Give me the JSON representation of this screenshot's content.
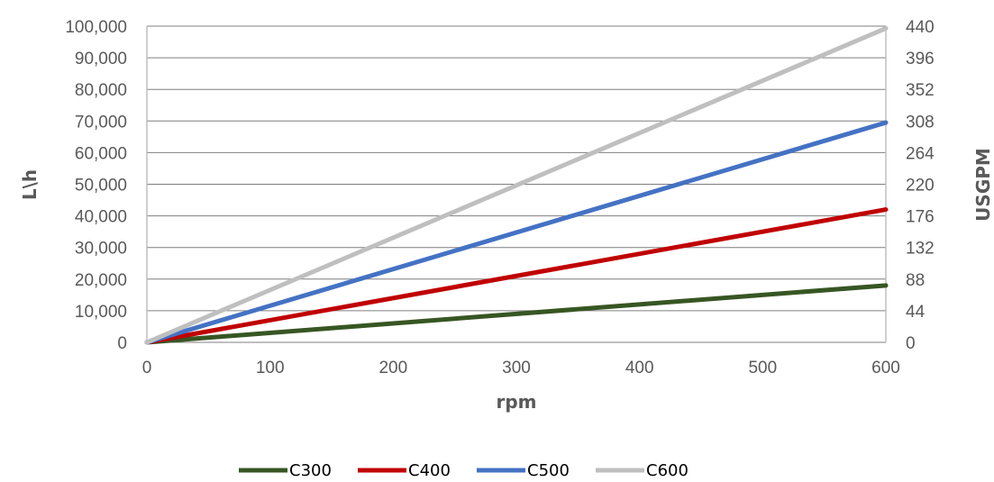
{
  "chart_data": {
    "type": "line",
    "title": "",
    "xlabel": "rpm",
    "ylabel": "L\\h",
    "y2label": "USGPM",
    "xlim": [
      0,
      600
    ],
    "ylim": [
      0,
      100000
    ],
    "y2lim": [
      0,
      440
    ],
    "x_ticks": [
      "0",
      "100",
      "200",
      "300",
      "400",
      "500",
      "600"
    ],
    "y_ticks": [
      "0",
      "10,000",
      "20,000",
      "30,000",
      "40,000",
      "50,000",
      "60,000",
      "70,000",
      "80,000",
      "90,000",
      "100,000"
    ],
    "y2_ticks": [
      "0",
      "44",
      "88",
      "132",
      "176",
      "220",
      "264",
      "308",
      "352",
      "396",
      "440"
    ],
    "grid": true,
    "legend_position": "bottom",
    "series": [
      {
        "name": "C300",
        "color": "#375623",
        "x": [
          0,
          600
        ],
        "y": [
          0,
          18000
        ]
      },
      {
        "name": "C400",
        "color": "#C00000",
        "x": [
          0,
          600
        ],
        "y": [
          0,
          42000
        ]
      },
      {
        "name": "C500",
        "color": "#4472C4",
        "x": [
          0,
          600
        ],
        "y": [
          0,
          69500
        ]
      },
      {
        "name": "C600",
        "color": "#BFBFBF",
        "x": [
          0,
          600
        ],
        "y": [
          0,
          99300
        ]
      }
    ]
  }
}
